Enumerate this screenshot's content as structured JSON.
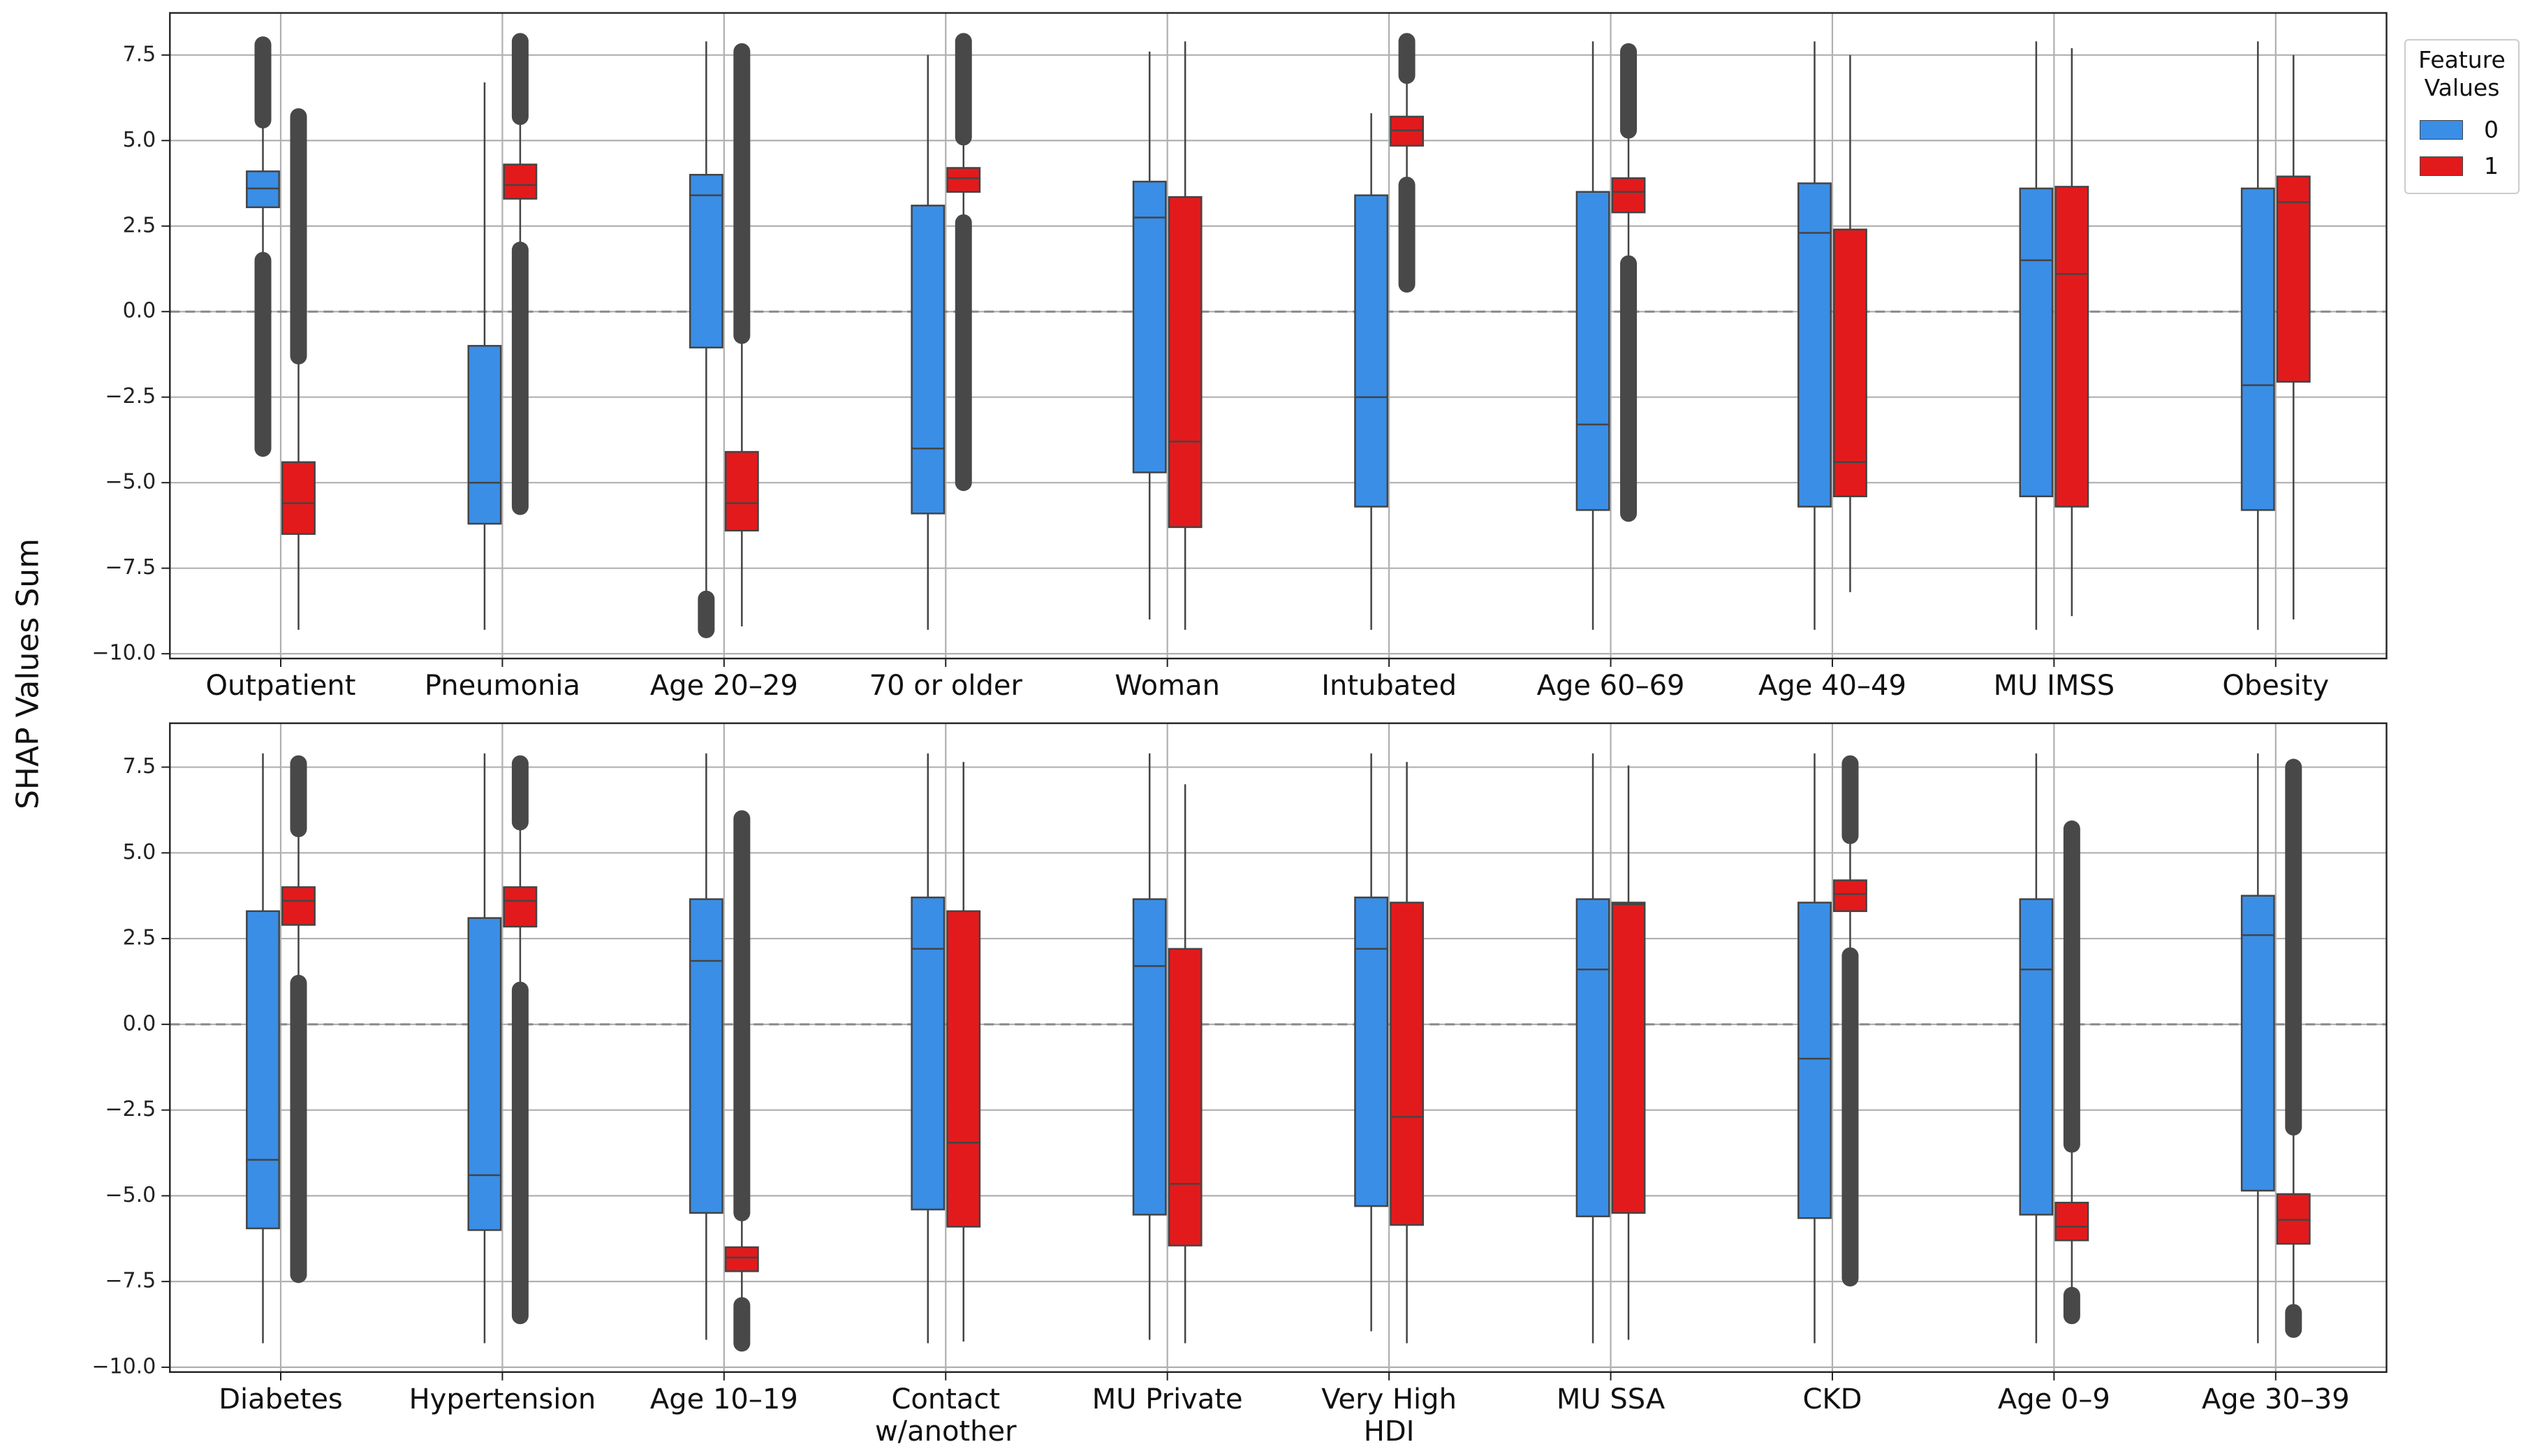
{
  "chart_data": [
    {
      "type": "box",
      "ylabel": "SHAP Values Sum",
      "legend_title": "Feature\nValues",
      "legend": "upper right outside",
      "grid": true,
      "reference_line": 0,
      "ylim": [
        -10.14,
        8.73
      ],
      "yticks": [
        {
          "value": 7.5,
          "label": "7.5"
        },
        {
          "value": 5,
          "label": "5.0"
        },
        {
          "value": 2.5,
          "label": "2.5"
        },
        {
          "value": 0,
          "label": "0.0"
        },
        {
          "value": -2.5,
          "label": "−2.5"
        },
        {
          "value": -5,
          "label": "−5.0"
        },
        {
          "value": -7.5,
          "label": "−7.5"
        },
        {
          "value": -10,
          "label": "−10.0"
        }
      ],
      "categories": [
        "Outpatient",
        "Pneumonia",
        "Age 20–29",
        "70 or older",
        "Woman",
        "Intubated",
        "Age 60–69",
        "Age 40–49",
        "MU IMSS",
        "Obesity"
      ],
      "series": [
        {
          "name": "0",
          "color": "#3a8ee6",
          "boxes": [
            [
              1.5,
              3.05,
              3.6,
              4.1,
              5.6
            ],
            [
              -9.3,
              -6.2,
              -5.0,
              -1.0,
              6.7
            ],
            [
              -8.3,
              -1.05,
              3.4,
              4.0,
              7.9
            ],
            [
              -9.3,
              -5.9,
              -4.0,
              3.1,
              7.5
            ],
            [
              -9.0,
              -4.7,
              2.75,
              3.8,
              7.6
            ],
            [
              -9.3,
              -5.7,
              -2.5,
              3.4,
              5.8
            ],
            [
              -9.3,
              -5.8,
              -3.3,
              3.5,
              7.9
            ],
            [
              -9.3,
              -5.7,
              2.3,
              3.75,
              7.9
            ],
            [
              -9.3,
              -5.4,
              1.5,
              3.6,
              7.9
            ],
            [
              -9.3,
              -5.8,
              -2.15,
              3.6,
              7.9
            ]
          ],
          "outlier_ranges": [
            [
              [
                -4.0,
                1.5
              ],
              [
                5.6,
                7.8
              ]
            ],
            [],
            [
              [
                -9.3,
                -8.4
              ]
            ],
            [],
            [],
            [],
            [],
            [],
            [],
            []
          ]
        },
        {
          "name": "1",
          "color": "#e31a1c",
          "boxes": [
            [
              -9.3,
              -6.5,
              -5.6,
              -4.4,
              -1.3
            ],
            [
              1.8,
              3.3,
              3.7,
              4.3,
              5.7
            ],
            [
              -9.2,
              -6.4,
              -5.6,
              -4.1,
              -0.7
            ],
            [
              2.6,
              3.5,
              3.9,
              4.2,
              5.1
            ],
            [
              -9.3,
              -6.3,
              -3.8,
              3.35,
              7.9
            ],
            [
              3.7,
              4.85,
              5.3,
              5.7,
              6.9
            ],
            [
              1.4,
              2.9,
              3.5,
              3.9,
              5.3
            ],
            [
              -8.2,
              -5.4,
              -4.4,
              2.4,
              7.5
            ],
            [
              -8.9,
              -5.7,
              1.1,
              3.65,
              7.7
            ],
            [
              -9.0,
              -2.05,
              3.2,
              3.95,
              7.5
            ]
          ],
          "outlier_ranges": [
            [
              [
                -1.3,
                5.7
              ]
            ],
            [
              [
                -5.7,
                1.8
              ],
              [
                5.7,
                7.9
              ]
            ],
            [
              [
                -0.7,
                7.6
              ]
            ],
            [
              [
                -5.0,
                2.6
              ],
              [
                5.1,
                7.9
              ]
            ],
            [],
            [
              [
                0.8,
                3.7
              ],
              [
                6.9,
                7.9
              ]
            ],
            [
              [
                -5.9,
                1.4
              ],
              [
                5.3,
                7.6
              ]
            ],
            [],
            [],
            []
          ]
        }
      ]
    },
    {
      "type": "box",
      "grid": true,
      "reference_line": 0,
      "ylim": [
        -10.14,
        8.78
      ],
      "yticks": [
        {
          "value": 7.5,
          "label": "7.5"
        },
        {
          "value": 5,
          "label": "5.0"
        },
        {
          "value": 2.5,
          "label": "2.5"
        },
        {
          "value": 0,
          "label": "0.0"
        },
        {
          "value": -2.5,
          "label": "−2.5"
        },
        {
          "value": -5,
          "label": "−5.0"
        },
        {
          "value": -7.5,
          "label": "−7.5"
        },
        {
          "value": -10,
          "label": "−10.0"
        }
      ],
      "categories": [
        "Diabetes",
        "Hypertension",
        "Age 10–19",
        "Contact\nw/another",
        "MU Private",
        "Very High\nHDI",
        "MU SSA",
        "CKD",
        "Age 0–9",
        "Age 30–39"
      ],
      "series": [
        {
          "color": "#3a8ee6",
          "boxes": [
            [
              -9.3,
              -5.95,
              -3.95,
              3.3,
              7.9
            ],
            [
              -9.3,
              -6.0,
              -4.4,
              3.1,
              7.9
            ],
            [
              -9.2,
              -5.5,
              1.85,
              3.65,
              7.9
            ],
            [
              -9.3,
              -5.4,
              2.2,
              3.7,
              7.9
            ],
            [
              -9.2,
              -5.55,
              1.7,
              3.65,
              7.9
            ],
            [
              -8.95,
              -5.3,
              2.2,
              3.7,
              7.9
            ],
            [
              -9.3,
              -5.6,
              1.6,
              3.65,
              7.9
            ],
            [
              -9.3,
              -5.65,
              -1.0,
              3.55,
              7.9
            ],
            [
              -9.3,
              -5.55,
              1.6,
              3.65,
              7.9
            ],
            [
              -9.3,
              -4.85,
              2.6,
              3.75,
              7.9
            ]
          ],
          "outlier_ranges": [
            [],
            [],
            [],
            [],
            [],
            [],
            [],
            [],
            [],
            []
          ]
        },
        {
          "color": "#e31a1c",
          "boxes": [
            [
              1.2,
              2.9,
              3.6,
              4.0,
              5.7
            ],
            [
              1.0,
              2.85,
              3.6,
              4.0,
              5.9
            ],
            [
              -8.2,
              -7.2,
              -6.8,
              -6.5,
              -5.5
            ],
            [
              -9.25,
              -5.9,
              -3.45,
              3.3,
              7.65
            ],
            [
              -9.3,
              -6.45,
              -4.65,
              2.2,
              7.0
            ],
            [
              -9.3,
              -5.85,
              -2.7,
              3.55,
              7.65
            ],
            [
              -9.2,
              -5.5,
              3.5,
              3.55,
              7.55
            ],
            [
              2.0,
              3.3,
              3.8,
              4.2,
              5.5
            ],
            [
              -7.9,
              -6.3,
              -5.9,
              -5.2,
              -3.5
            ],
            [
              -8.4,
              -6.4,
              -5.7,
              -4.95,
              -3.0
            ]
          ],
          "outlier_ranges": [
            [
              [
                -7.3,
                1.2
              ],
              [
                5.7,
                7.6
              ]
            ],
            [
              [
                -8.5,
                1.0
              ],
              [
                5.9,
                7.6
              ]
            ],
            [
              [
                -9.3,
                -8.2
              ],
              [
                -5.5,
                6.0
              ]
            ],
            [],
            [],
            [],
            [],
            [
              [
                -7.4,
                2.0
              ],
              [
                5.5,
                7.6
              ]
            ],
            [
              [
                -8.5,
                -7.9
              ],
              [
                -3.5,
                5.7
              ]
            ],
            [
              [
                -8.9,
                -8.4
              ],
              [
                -3.0,
                7.5
              ]
            ]
          ]
        }
      ]
    }
  ]
}
